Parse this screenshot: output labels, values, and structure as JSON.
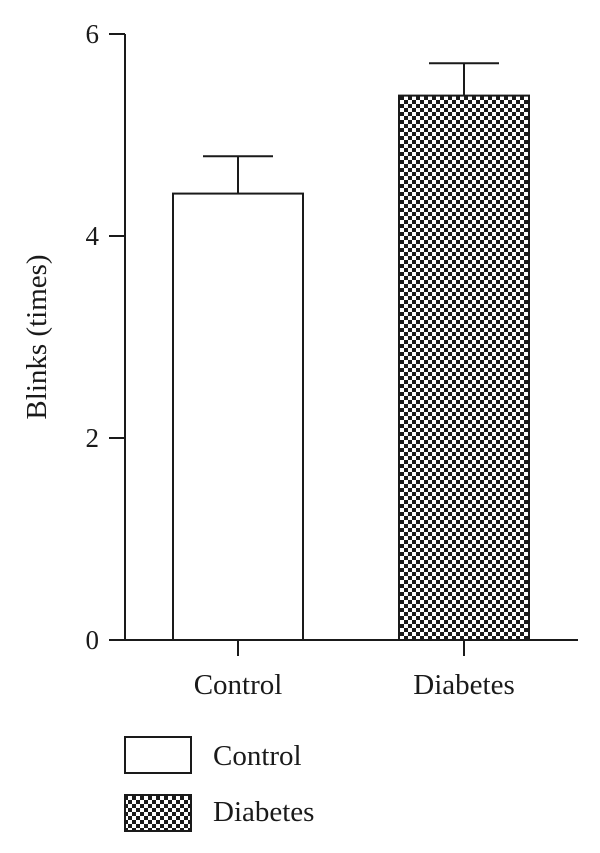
{
  "chart_data": {
    "type": "bar",
    "categories": [
      "Control",
      "Diabetes"
    ],
    "series": [
      {
        "values": [
          4.42,
          5.39
        ],
        "errors": [
          0.37,
          0.32
        ],
        "fills": [
          "white",
          "checkerboard"
        ]
      }
    ],
    "ylabel": "Blinks (times)",
    "xlabel": "",
    "ylim": [
      0,
      6
    ],
    "yticks": [
      0,
      2,
      4,
      6
    ],
    "grid": false,
    "legend": {
      "placement": "bottom-left",
      "entries": [
        {
          "label": "Control",
          "fill": "white"
        },
        {
          "label": "Diabetes",
          "fill": "checkerboard"
        }
      ]
    }
  },
  "colors": {
    "ink": "#1a1a1a",
    "background": "#ffffff"
  }
}
